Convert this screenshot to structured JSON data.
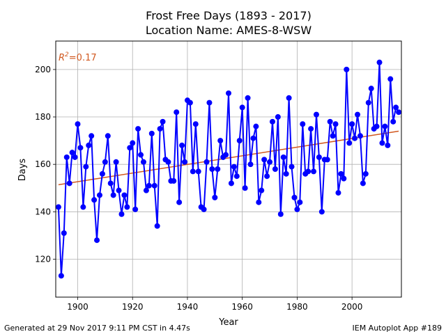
{
  "chart_data": {
    "type": "line",
    "title": "Frost Free Days (1893 - 2017)",
    "subtitle": "Location Name: AMES-8-WSW",
    "xlabel": "Year",
    "ylabel": "Days",
    "xlim": [
      1892,
      2018
    ],
    "ylim": [
      104,
      212
    ],
    "x_ticks": [
      1900,
      1920,
      1940,
      1960,
      1980,
      2000
    ],
    "y_ticks": [
      120,
      140,
      160,
      180,
      200
    ],
    "grid": true,
    "series": [
      {
        "color": "#0000ff",
        "x": [
          1893,
          1894,
          1895,
          1896,
          1897,
          1898,
          1899,
          1900,
          1901,
          1902,
          1903,
          1904,
          1905,
          1906,
          1907,
          1908,
          1909,
          1910,
          1911,
          1912,
          1913,
          1914,
          1915,
          1916,
          1917,
          1918,
          1919,
          1920,
          1921,
          1922,
          1923,
          1924,
          1925,
          1926,
          1927,
          1928,
          1929,
          1930,
          1931,
          1932,
          1933,
          1934,
          1935,
          1936,
          1937,
          1938,
          1939,
          1940,
          1941,
          1942,
          1943,
          1944,
          1945,
          1946,
          1947,
          1948,
          1949,
          1950,
          1951,
          1952,
          1953,
          1954,
          1955,
          1956,
          1957,
          1958,
          1959,
          1960,
          1961,
          1962,
          1963,
          1964,
          1965,
          1966,
          1967,
          1968,
          1969,
          1970,
          1971,
          1972,
          1973,
          1974,
          1975,
          1976,
          1977,
          1978,
          1979,
          1980,
          1981,
          1982,
          1983,
          1984,
          1985,
          1986,
          1987,
          1988,
          1989,
          1990,
          1991,
          1992,
          1993,
          1994,
          1995,
          1996,
          1997,
          1998,
          1999,
          2000,
          2001,
          2002,
          2003,
          2004,
          2005,
          2006,
          2007,
          2008,
          2009,
          2010,
          2011,
          2012,
          2013,
          2014,
          2015,
          2016,
          2017
        ],
        "values": [
          142,
          113,
          131,
          163,
          152,
          165,
          163,
          177,
          167,
          142,
          159,
          168,
          172,
          145,
          128,
          147,
          156,
          161,
          172,
          152,
          147,
          161,
          149,
          139,
          147,
          142,
          167,
          169,
          141,
          175,
          164,
          161,
          149,
          151,
          173,
          151,
          134,
          175,
          178,
          162,
          161,
          153,
          153,
          182,
          144,
          168,
          161,
          187,
          186,
          157,
          177,
          157,
          142,
          141,
          161,
          186,
          158,
          146,
          158,
          170,
          163,
          164,
          190,
          152,
          159,
          155,
          170,
          184,
          150,
          188,
          160,
          171,
          176,
          144,
          149,
          162,
          155,
          161,
          178,
          158,
          180,
          139,
          163,
          156,
          188,
          159,
          146,
          141,
          144,
          177,
          156,
          157,
          175,
          157,
          181,
          163,
          140,
          162,
          162,
          178,
          172,
          177,
          148,
          156,
          154,
          200,
          169,
          177,
          171,
          181,
          172,
          152,
          156,
          186,
          192,
          175,
          176,
          203,
          169,
          176,
          168,
          196,
          178,
          184,
          182
        ]
      }
    ],
    "trendline": {
      "color": "#d1581f",
      "x": [
        1893,
        2017
      ],
      "values": [
        151.4,
        174.0
      ]
    },
    "annotation": {
      "text": "$R^2$=0.17",
      "r2_prefix": "R",
      "r2_exp": "2",
      "r2_value": "=0.17",
      "color": "#d1581f"
    }
  },
  "footer": {
    "left": "Generated at 29 Nov 2017 9:11 PM CST in 4.47s",
    "right": "IEM Autoplot App #189"
  }
}
